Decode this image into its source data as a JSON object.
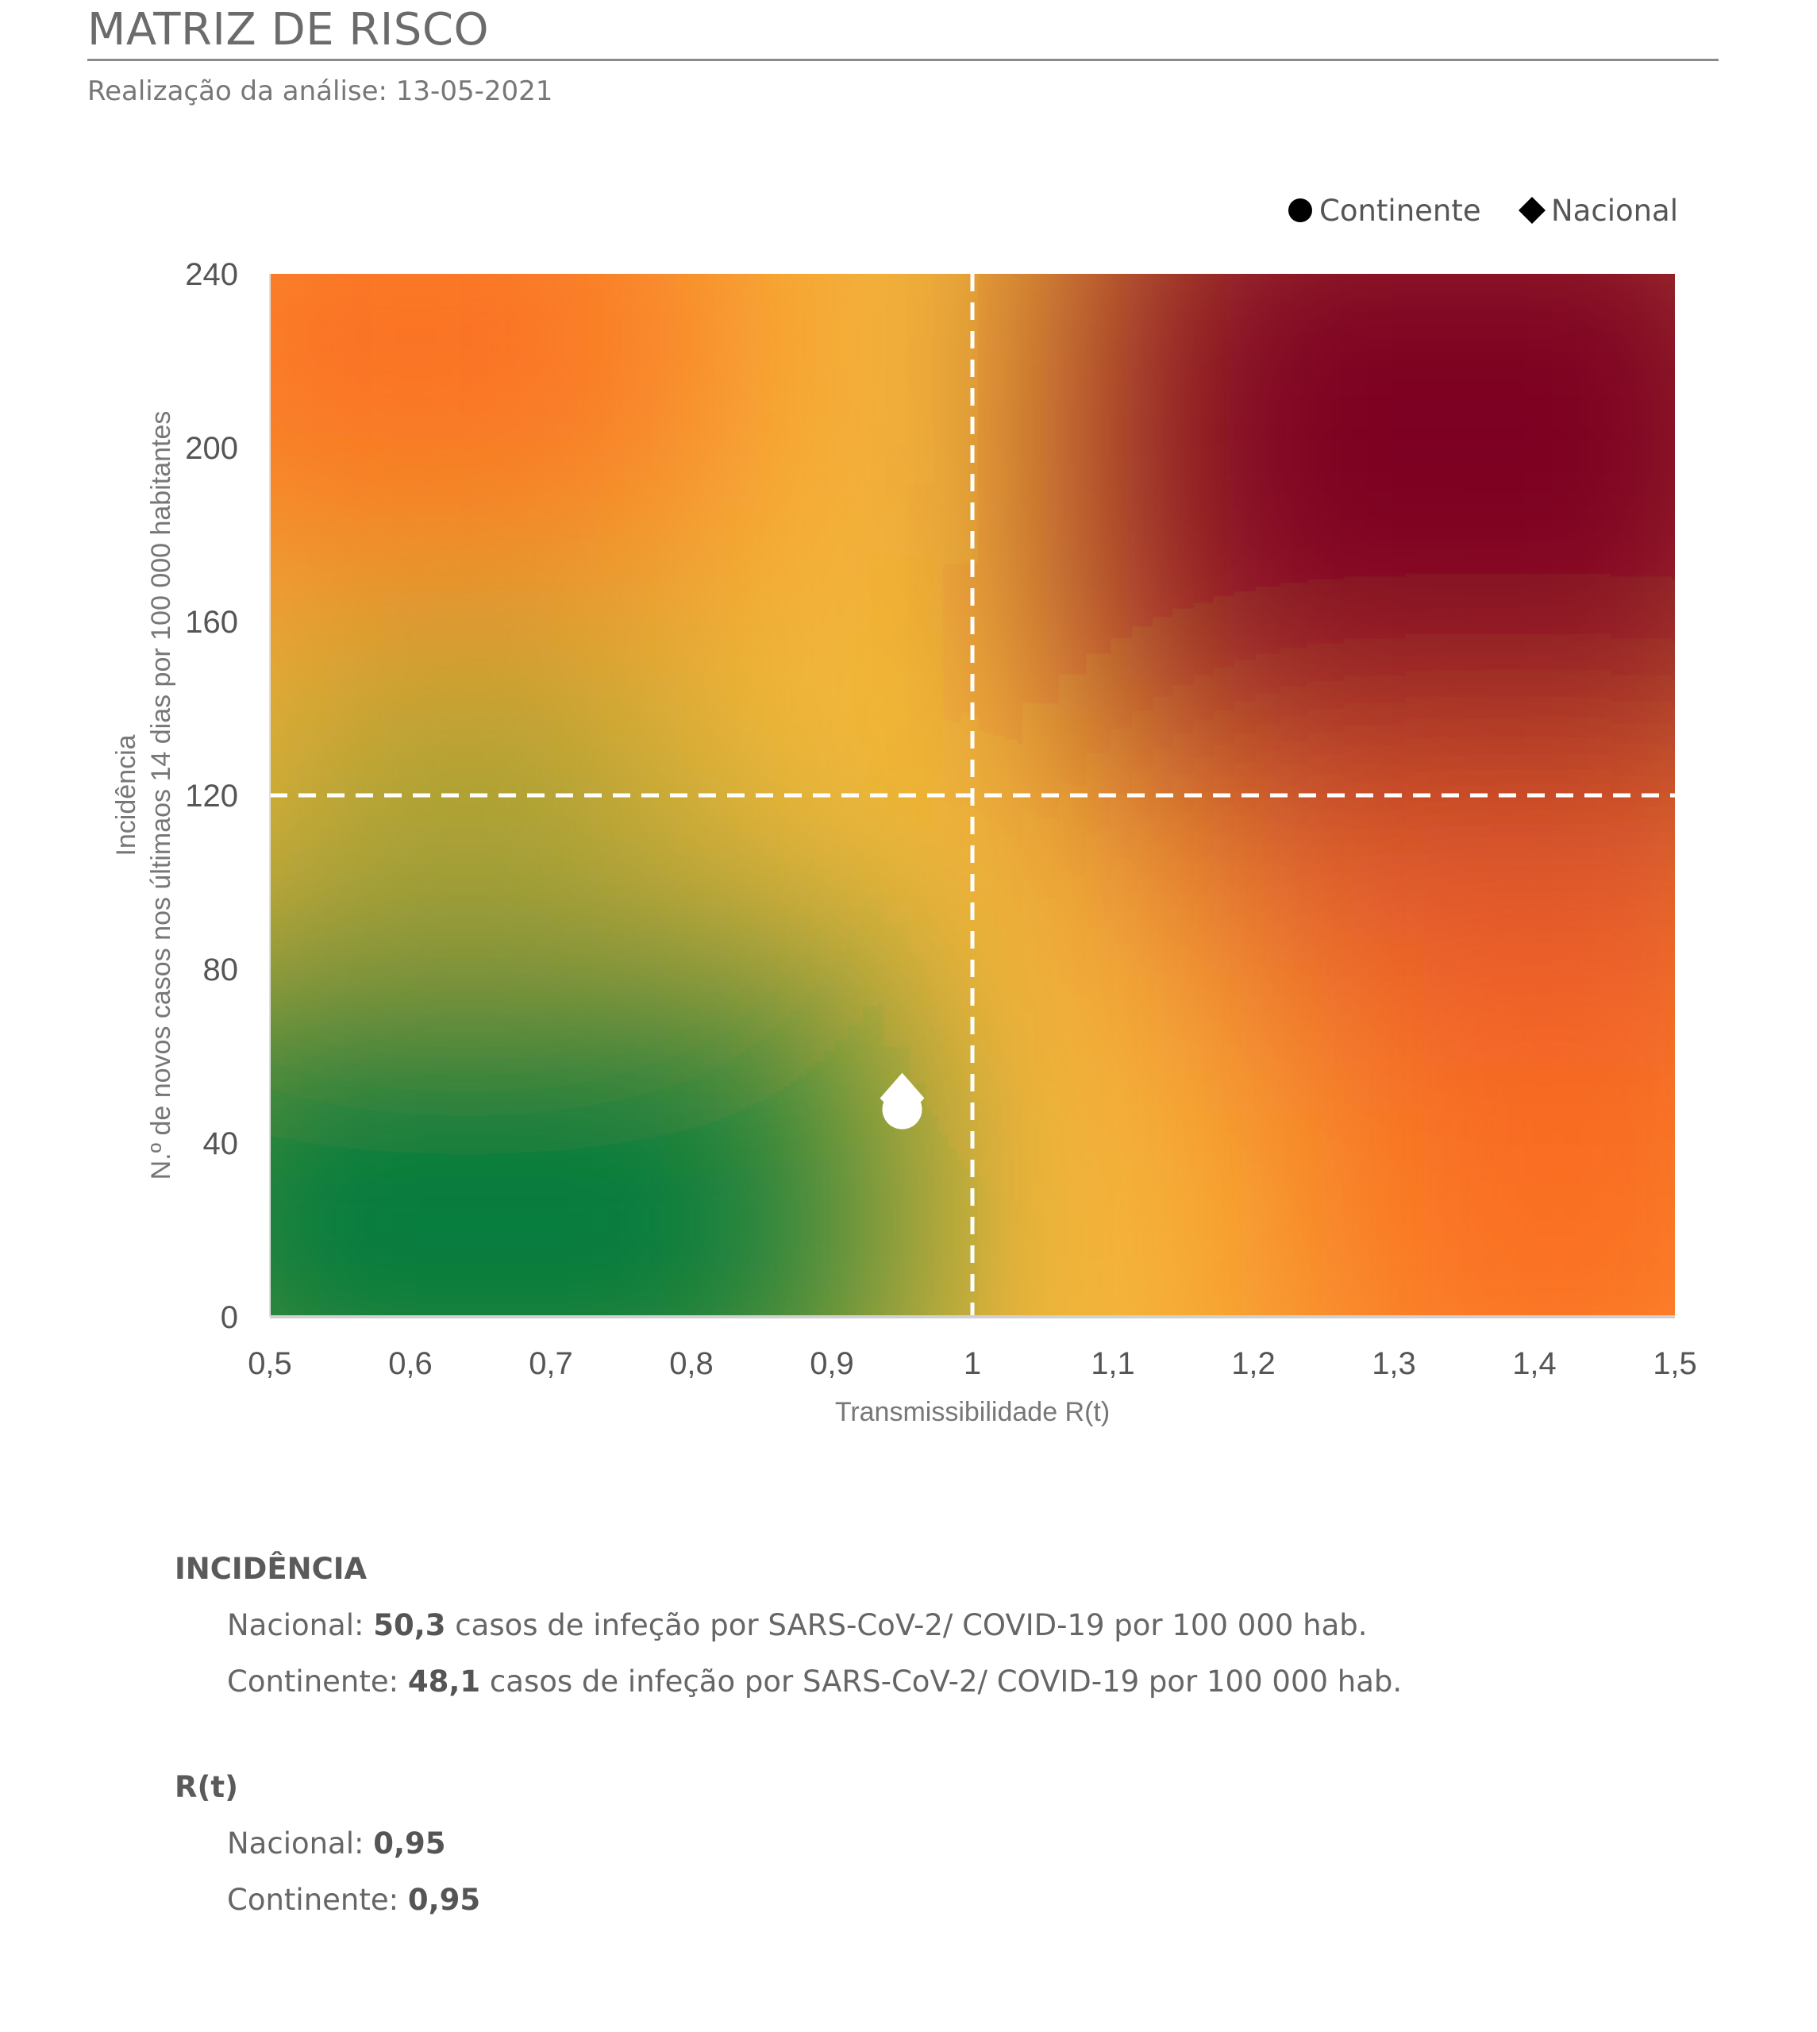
{
  "header": {
    "title": "MATRIZ DE RISCO",
    "subtitle": "Realização da análise: 13-05-2021"
  },
  "chart_data": {
    "type": "scatter",
    "xlabel": "Transmissibilidade R(t)",
    "ylabel_line1": "Incidência",
    "ylabel_line2": "N.º de novos casos nos últimaos 14 dias por 100 000 habitantes",
    "xlim": [
      0.5,
      1.5
    ],
    "ylim": [
      0,
      240
    ],
    "x_ticks": [
      "0,5",
      "0,6",
      "0,7",
      "0,8",
      "0,9",
      "1",
      "1,1",
      "1,2",
      "1,3",
      "1,4",
      "1,5"
    ],
    "y_ticks": [
      "0",
      "40",
      "80",
      "120",
      "160",
      "200",
      "240"
    ],
    "thresholds": {
      "x": 1,
      "y": 120
    },
    "legend_position": "top-right",
    "series": [
      {
        "name": "Continente",
        "marker": "circle",
        "x": 0.95,
        "y": 48.1
      },
      {
        "name": "Nacional",
        "marker": "diamond",
        "x": 0.95,
        "y": 50.3
      }
    ],
    "background": "risk gradient green-yellow-orange-red",
    "colors": {
      "green": "#007a3d",
      "yellow": "#f5b93a",
      "orange": "#fb7020",
      "dark_red": "#7d0022"
    }
  },
  "summary": {
    "incidencia": {
      "title": "INCIDÊNCIA",
      "nacional": {
        "label": "Nacional: ",
        "value": "50,3",
        "text": " casos de infeção por SARS-CoV-2/ COVID-19 por 100 000 hab."
      },
      "continente": {
        "label": "Continente: ",
        "value": "48,1",
        "text": " casos de infeção por SARS-CoV-2/ COVID-19 por 100 000 hab."
      }
    },
    "rt": {
      "title": "R(t)",
      "nacional": {
        "label": "Nacional: ",
        "value": "0,95"
      },
      "continente": {
        "label": "Continente: ",
        "value": "0,95"
      }
    }
  }
}
